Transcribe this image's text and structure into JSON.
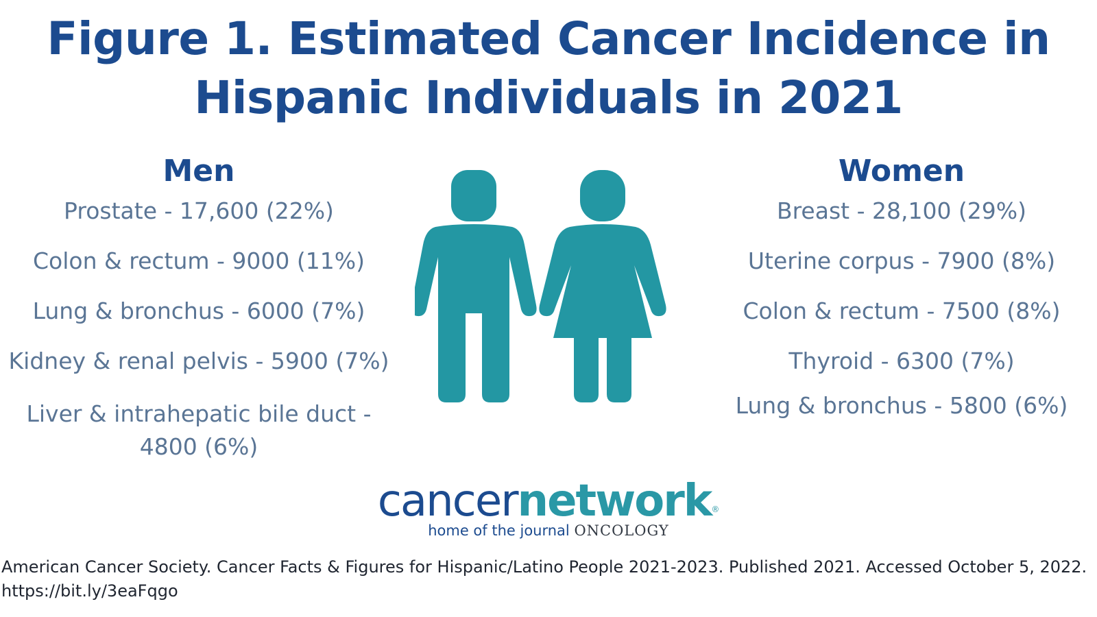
{
  "title": {
    "line1": "Figure 1. Estimated Cancer Incidence in",
    "line2": "Hispanic Individuals in 2021"
  },
  "men": {
    "heading": "Men",
    "items": [
      "Prostate - 17,600 (22%)",
      "Colon & rectum - 9000 (11%)",
      "Lung & bronchus - 6000 (7%)",
      "Kidney & renal pelvis - 5900 (7%)",
      "Liver & intrahepatic bile duct - 4800 (6%)"
    ]
  },
  "women": {
    "heading": "Women",
    "items": [
      "Breast - 28,100 (29%)",
      "Uterine corpus - 7900 (8%)",
      "Colon & rectum - 7500 (8%)",
      "Thyroid - 6300 (7%)",
      "Lung & bronchus - 5800 (6%)"
    ]
  },
  "icons": {
    "male": "male-figure-icon",
    "female": "female-figure-icon",
    "color": "#2397a3"
  },
  "logo": {
    "part1": "cancer",
    "part2": "network",
    "registered": "®",
    "tagline_a": "home of the journal",
    "tagline_b": "ONCOLOGY"
  },
  "citation": "American Cancer Society. Cancer Facts & Figures for Hispanic/Latino People 2021-2023. Published 2021. Accessed October 5, 2022. https://bit.ly/3eaFqgo",
  "colors": {
    "title": "#1c4b8f",
    "body_text": "#5a7595",
    "accent": "#2397a3"
  }
}
